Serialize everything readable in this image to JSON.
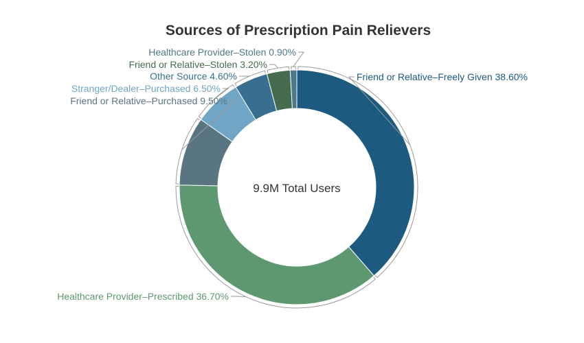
{
  "chart_data": {
    "type": "pie",
    "donut": true,
    "title": "Sources of Prescription Pain Relievers",
    "center_label": "9.9M Total Users",
    "legend": "none",
    "slices": [
      {
        "label": "Friend or Relative–Freely Given",
        "value": 38.6,
        "value_label": "38.60%",
        "color": "#1c5a80"
      },
      {
        "label": "Healthcare Provider–Prescribed",
        "value": 36.7,
        "value_label": "36.70%",
        "color": "#5d9871"
      },
      {
        "label": "Friend or Relative–Purchased",
        "value": 9.5,
        "value_label": "9.50%",
        "color": "#597582"
      },
      {
        "label": "Stranger/Dealer–Purchased",
        "value": 6.5,
        "value_label": "6.50%",
        "color": "#6fa6c5"
      },
      {
        "label": "Other Source",
        "value": 4.6,
        "value_label": "4.60%",
        "color": "#386f91"
      },
      {
        "label": "Friend or Relative–Stolen",
        "value": 3.2,
        "value_label": "3.20%",
        "color": "#466c50"
      },
      {
        "label": "Healthcare Provider–Stolen",
        "value": 0.9,
        "value_label": "0.90%",
        "color": "#4e7888"
      }
    ]
  }
}
